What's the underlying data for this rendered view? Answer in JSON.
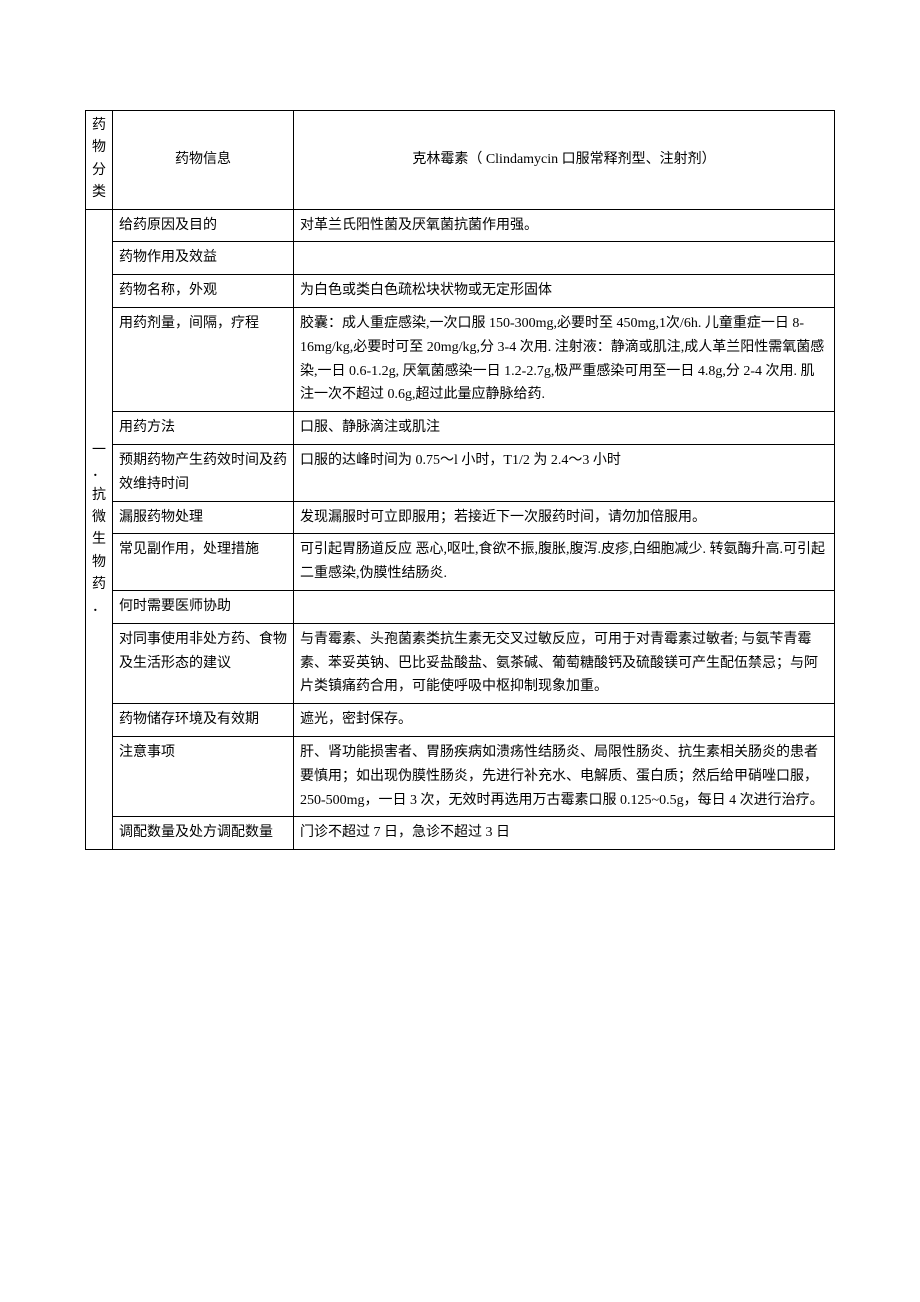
{
  "header": {
    "category_label": "药物分类",
    "info_label": "药物信息",
    "drug_name": "克林霉素（ Clindamycin 口服常释剂型、注射剂）"
  },
  "category_side": "一．抗微生物药．",
  "rows": [
    {
      "label": "给药原因及目的",
      "content": "对革兰氏阳性菌及厌氧菌抗菌作用强。"
    },
    {
      "label": "药物作用及效益",
      "content": ""
    },
    {
      "label": "药物名称，外观",
      "content": "为白色或类白色疏松块状物或无定形固体"
    },
    {
      "label": "用药剂量，间隔，疗程",
      "content": "胶囊：成人重症感染,一次口服 150-300mg,必要时至 450mg,1次/6h. 儿童重症一日 8-16mg/kg,必要时可至 20mg/kg,分 3-4 次用. 注射液：静滴或肌注,成人革兰阳性需氧菌感染,一日 0.6-1.2g, 厌氧菌感染一日 1.2-2.7g,极严重感染可用至一日 4.8g,分 2-4 次用. 肌注一次不超过 0.6g,超过此量应静脉给药."
    },
    {
      "label": "用药方法",
      "content": "口服、静脉滴注或肌注"
    },
    {
      "label": "预期药物产生药效时间及药效维持时间",
      "content": "口服的达峰时间为 0.75～l 小时，T1/2 为 2.4～3 小时"
    },
    {
      "label": "漏服药物处理",
      "content": "发现漏服时可立即服用；若接近下一次服药时间，请勿加倍服用。"
    },
    {
      "label": "常见副作用，处理措施",
      "content": "可引起胃肠道反应 恶心,呕吐,食欲不振,腹胀,腹泻.皮疹,白细胞减少. 转氨酶升高.可引起二重感染,伪膜性结肠炎."
    },
    {
      "label": "何时需要医师协助",
      "content": ""
    },
    {
      "label": "对同事使用非处方药、食物及生活形态的建议",
      "content": "与青霉素、头孢菌素类抗生素无交叉过敏反应，可用于对青霉素过敏者; 与氨苄青霉素、苯妥英钠、巴比妥盐酸盐、氨茶碱、葡萄糖酸钙及硫酸镁可产生配伍禁忌；与阿片类镇痛药合用，可能使呼吸中枢抑制现象加重。"
    },
    {
      "label": "药物储存环境及有效期",
      "content": "遮光，密封保存。"
    },
    {
      "label": "注意事项",
      "content": "肝、肾功能损害者、胃肠疾病如溃疡性结肠炎、局限性肠炎、抗生素相关肠炎的患者要慎用；如出现伪膜性肠炎，先进行补充水、电解质、蛋白质；然后给甲硝唑口服，250-500mg，一日 3 次，无效时再选用万古霉素口服 0.125~0.5g，每日 4 次进行治疗。"
    },
    {
      "label": "调配数量及处方调配数量",
      "content": "门诊不超过 7 日，急诊不超过 3 日"
    }
  ]
}
